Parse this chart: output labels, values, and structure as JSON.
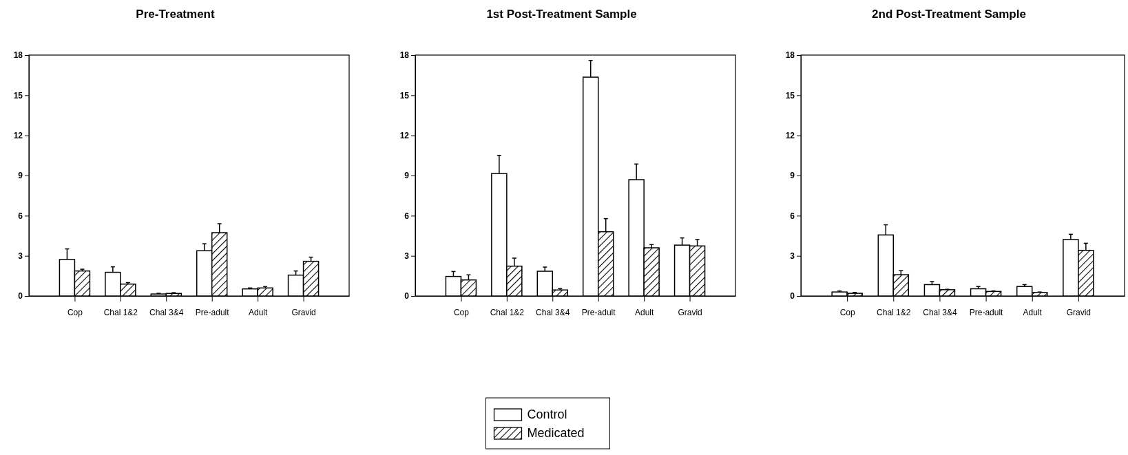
{
  "chart_data": [
    {
      "type": "bar",
      "title": "Pre-Treatment",
      "categories": [
        "Cop",
        "Chal 1&2",
        "Chal 3&4",
        "Pre-adult",
        "Adult",
        "Gravid"
      ],
      "ylim": [
        0,
        18
      ],
      "yticks": [
        0,
        3,
        6,
        9,
        12,
        15,
        18
      ],
      "legend": false,
      "series": [
        {
          "color": "#ffffff",
          "values": [
            2.73,
            1.77,
            0.15,
            3.38,
            0.53,
            1.56
          ],
          "errors": [
            [
              2.73,
              3.52
            ],
            [
              1.77,
              2.18
            ],
            [
              0.15,
              0.2
            ],
            [
              3.38,
              3.9
            ],
            [
              0.53,
              0.6
            ],
            [
              1.56,
              1.87
            ]
          ]
        },
        {
          "color": "#000000",
          "values": [
            1.87,
            0.89,
            0.19,
            4.73,
            0.6,
            2.59
          ],
          "errors": [
            [
              1.87,
              2.0
            ],
            [
              0.89,
              1.0
            ],
            [
              0.19,
              0.25
            ],
            [
              4.73,
              5.4
            ],
            [
              0.6,
              0.7
            ],
            [
              2.59,
              2.9
            ]
          ]
        }
      ]
    },
    {
      "type": "bar",
      "title": "1st Post-Treatment Sample",
      "categories": [
        "Cop",
        "Chal 1&2",
        "Chal 3&4",
        "Pre-adult",
        "Adult",
        "Gravid"
      ],
      "ylim": [
        0,
        18
      ],
      "yticks": [
        0,
        3,
        6,
        9,
        12,
        15,
        18
      ],
      "legend": "bottom",
      "series": [
        {
          "name": "Control",
          "color": "#ffffff",
          "values": [
            1.46,
            9.15,
            1.85,
            16.35,
            8.69,
            3.8
          ],
          "errors": [
            [
              1.46,
              1.83
            ],
            [
              9.15,
              10.5
            ],
            [
              1.85,
              2.16
            ],
            [
              16.35,
              17.6
            ],
            [
              8.69,
              9.86
            ],
            [
              3.8,
              4.34
            ]
          ]
        },
        {
          "name": "Medicated",
          "color": "#000000",
          "values": [
            1.2,
            2.23,
            0.45,
            4.8,
            3.6,
            3.74
          ],
          "errors": [
            [
              1.2,
              1.58
            ],
            [
              2.23,
              2.83
            ],
            [
              0.45,
              0.55
            ],
            [
              4.8,
              5.78
            ],
            [
              3.6,
              3.84
            ],
            [
              3.74,
              4.22
            ]
          ]
        }
      ]
    },
    {
      "type": "bar",
      "title": "2nd Post-Treatment Sample",
      "categories": [
        "Cop",
        "Chal 1&2",
        "Chal 3&4",
        "Pre-adult",
        "Adult",
        "Gravid"
      ],
      "ylim": [
        0,
        18
      ],
      "yticks": [
        0,
        3,
        6,
        9,
        12,
        15,
        18
      ],
      "legend": false,
      "series": [
        {
          "color": "#ffffff",
          "values": [
            0.3,
            4.56,
            0.85,
            0.54,
            0.71,
            4.22
          ],
          "errors": [
            [
              0.3,
              0.37
            ],
            [
              4.56,
              5.32
            ],
            [
              0.85,
              1.08
            ],
            [
              0.54,
              0.71
            ],
            [
              0.71,
              0.85
            ],
            [
              4.22,
              4.61
            ]
          ]
        },
        {
          "color": "#000000",
          "values": [
            0.2,
            1.59,
            0.47,
            0.34,
            0.27,
            3.41
          ],
          "errors": [
            [
              0.2,
              0.27
            ],
            [
              1.59,
              1.89
            ],
            [
              0.47,
              0.5
            ],
            [
              0.34,
              0.38
            ],
            [
              0.27,
              0.3
            ],
            [
              3.41,
              3.94
            ]
          ]
        }
      ]
    }
  ]
}
